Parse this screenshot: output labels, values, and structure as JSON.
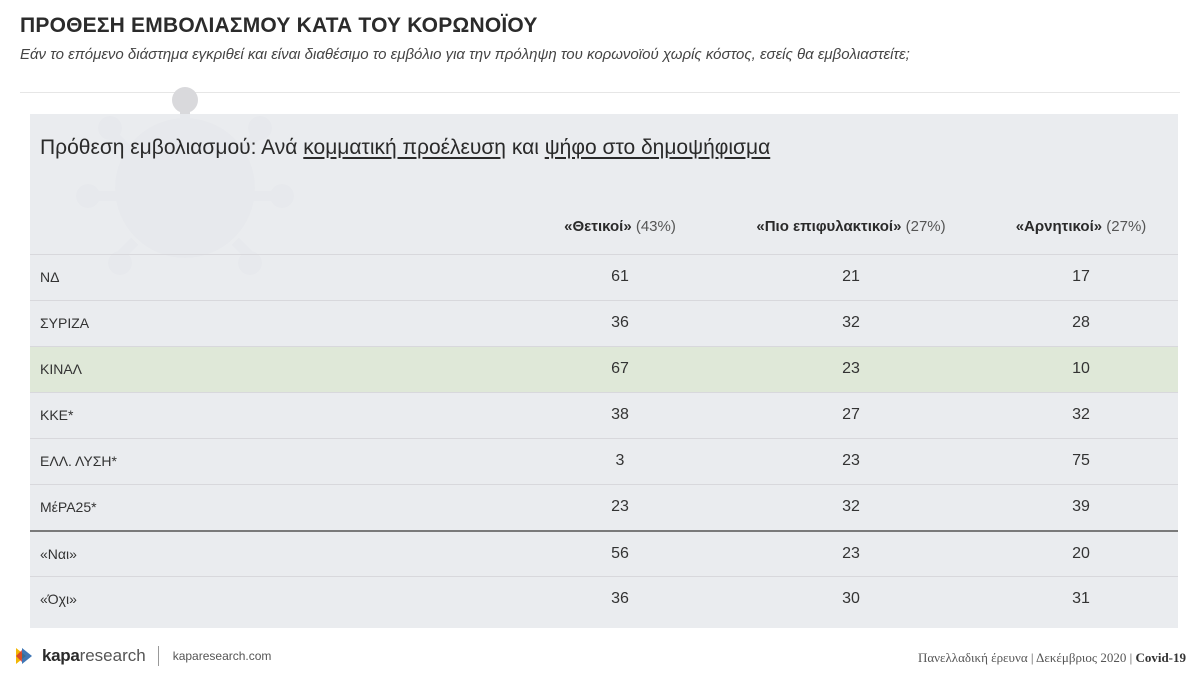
{
  "header": {
    "title": "ΠΡΟΘΕΣΗ ΕΜΒΟΛΙΑΣΜΟΥ ΚΑΤΑ ΤΟΥ ΚΟΡΩΝΟΪΟΥ",
    "subtitle": "Εάν το επόμενο διάστημα εγκριθεί και είναι διαθέσιμο το εμβόλιο για την πρόληψη του κορωνοϊού χωρίς κόστος, εσείς θα εμβολιαστείτε;"
  },
  "panel": {
    "heading_prefix": "Πρόθεση εμβολιασμού: Ανά ",
    "heading_link1": "κομματική προέλευση",
    "heading_mid": " και ",
    "heading_link2": "ψήφο στο δημοψήφισμα"
  },
  "table": {
    "columns": [
      {
        "label": "«Θετικοί»",
        "pct": "(43%)"
      },
      {
        "label": "«Πιο επιφυλακτικοί»",
        "pct": "(27%)"
      },
      {
        "label": "«Αρνητικοί»",
        "pct": "(27%)"
      }
    ],
    "rows": [
      {
        "label": "ΝΔ",
        "values": [
          "61",
          "21",
          "17"
        ],
        "highlight": false,
        "separator": false
      },
      {
        "label": "ΣΥΡΙΖΑ",
        "values": [
          "36",
          "32",
          "28"
        ],
        "highlight": false,
        "separator": false
      },
      {
        "label": "ΚΙΝΑΛ",
        "values": [
          "67",
          "23",
          "10"
        ],
        "highlight": true,
        "separator": false
      },
      {
        "label": "ΚΚΕ*",
        "values": [
          "38",
          "27",
          "32"
        ],
        "highlight": false,
        "separator": false
      },
      {
        "label": "ΕΛΛ. ΛΥΣΗ*",
        "values": [
          "3",
          "23",
          "75"
        ],
        "highlight": false,
        "separator": false
      },
      {
        "label": "ΜέΡΑ25*",
        "values": [
          "23",
          "32",
          "39"
        ],
        "highlight": false,
        "separator": false
      },
      {
        "label": "«Ναι»",
        "values": [
          "56",
          "23",
          "20"
        ],
        "highlight": false,
        "separator": true
      },
      {
        "label": "«Όχι»",
        "values": [
          "36",
          "30",
          "31"
        ],
        "highlight": false,
        "separator": false
      }
    ]
  },
  "footer": {
    "brand": "kapa",
    "brand_suffix": "research",
    "url": "kaparesearch.com",
    "survey": "Πανελλαδική έρευνα | Δεκέμβριος 2020 | ",
    "tag": "Covid-19"
  },
  "colors": {
    "highlight_row": "#dfe8d8",
    "panel_bg": "#e8eaee",
    "logo_yellow": "#f2b705",
    "logo_blue": "#1f5fa8",
    "logo_red": "#d3302f"
  }
}
